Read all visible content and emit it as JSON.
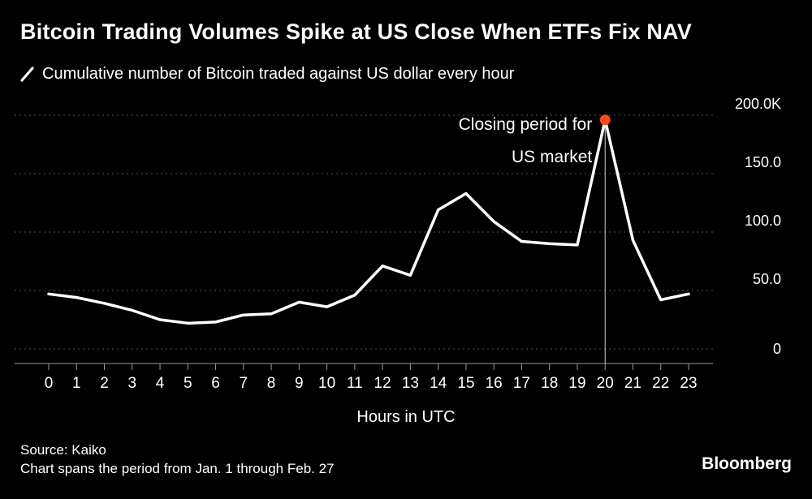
{
  "header": {
    "title": "Bitcoin Trading Volumes Spike at US Close When ETFs Fix NAV",
    "legend_label": "Cumulative number of Bitcoin traded against US dollar every hour"
  },
  "chart_data": {
    "type": "line",
    "title": "Bitcoin Trading Volumes Spike at US Close When ETFs Fix NAV",
    "series_name": "Cumulative number of Bitcoin traded against US dollar every hour",
    "x": [
      0,
      1,
      2,
      3,
      4,
      5,
      6,
      7,
      8,
      9,
      10,
      11,
      12,
      13,
      14,
      15,
      16,
      17,
      18,
      19,
      20,
      21,
      22,
      23
    ],
    "values": [
      47,
      44,
      39,
      33,
      25,
      22,
      23,
      29,
      30,
      40,
      36,
      46,
      71,
      63,
      119,
      133,
      109,
      92,
      90,
      89,
      196,
      93,
      42,
      47
    ],
    "xlabel": "Hours in UTC",
    "ylim": [
      0,
      200
    ],
    "y_ticks": [
      {
        "value": 200,
        "label": "200.0K"
      },
      {
        "value": 150,
        "label": "150.0"
      },
      {
        "value": 100,
        "label": "100.0"
      },
      {
        "value": 50,
        "label": "50.0"
      },
      {
        "value": 0,
        "label": "0"
      }
    ],
    "grid": "dotted-horizontal",
    "legend_position": "top-left",
    "line_color": "#ffffff",
    "annotation": {
      "text_lines": [
        "Closing period for",
        "US market"
      ],
      "x": 20,
      "marker_color": "#ff4a14"
    }
  },
  "footer": {
    "source": "Source: Kaiko",
    "note": "Chart spans the period from Jan. 1 through Feb. 27",
    "brand": "Bloomberg"
  }
}
